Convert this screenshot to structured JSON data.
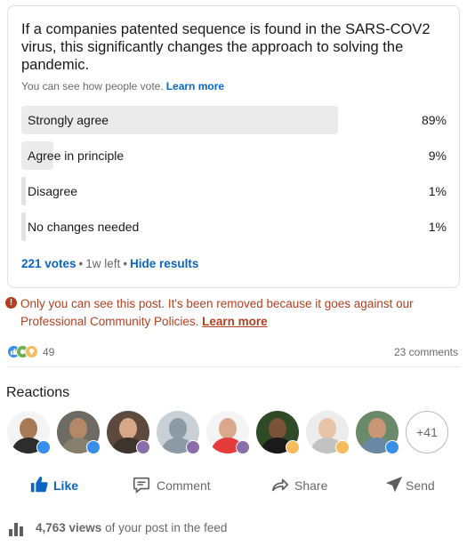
{
  "poll": {
    "question": "If a companies patented sequence is found in the SARS-COV2 virus, this significantly changes the approach to solving the pandemic.",
    "visibility_text": "You can see how people vote.",
    "visibility_link": "Learn more",
    "options": [
      {
        "label": "Strongly agree",
        "percent_text": "89%",
        "share": 0.89
      },
      {
        "label": "Agree in principle",
        "percent_text": "9%",
        "share": 0.09
      },
      {
        "label": "Disagree",
        "percent_text": "1%",
        "share": 0.01
      },
      {
        "label": "No changes needed",
        "percent_text": "1%",
        "share": 0.01
      }
    ],
    "votes": "221 votes",
    "time_left": "1w left",
    "hide_results": "Hide results"
  },
  "removed_notice": {
    "text": "Only you can see this post. It's been removed because it goes against our Professional Community Policies.",
    "link": "Learn more",
    "color": "#b24020"
  },
  "social": {
    "reaction_icons": [
      "like-icon",
      "celebrate-icon",
      "insightful-icon"
    ],
    "reaction_count": "49",
    "comments": "23 comments"
  },
  "reactions": {
    "heading": "Reactions",
    "more": "+41"
  },
  "actions": {
    "like": "Like",
    "comment": "Comment",
    "share": "Share",
    "send": "Send"
  },
  "views": {
    "count": "4,763 views",
    "suffix": "of your post in the feed"
  },
  "colors": {
    "accent": "#0a66c2",
    "bar": "#ebebeb",
    "warning": "#b24020"
  }
}
